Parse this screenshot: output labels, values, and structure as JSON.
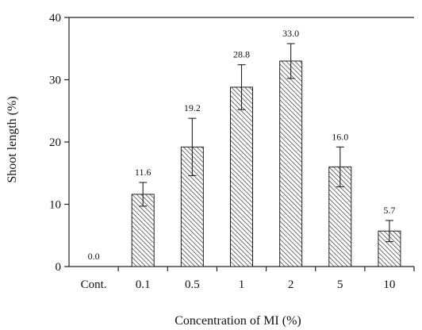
{
  "chart_data": {
    "type": "bar",
    "title": "",
    "xlabel": "Concentration of MI (%)",
    "ylabel": "Shoot length (%)",
    "ylim": [
      0,
      40
    ],
    "yticks": [
      0,
      10,
      20,
      30,
      40
    ],
    "categories": [
      "Cont.",
      "0.1",
      "0.5",
      "1",
      "2",
      "5",
      "10"
    ],
    "values": [
      0.0,
      11.6,
      19.2,
      28.8,
      33.0,
      16.0,
      5.7
    ],
    "value_labels": [
      "0.0",
      "11.6",
      "19.2",
      "28.8",
      "33.0",
      "16.0",
      "5.7"
    ],
    "errors": [
      0,
      1.9,
      4.6,
      3.6,
      2.8,
      3.2,
      1.7
    ],
    "grid": false,
    "legend": "none",
    "bar_fill": "hatched",
    "colors": {
      "axis": "#222222",
      "bar_fill": "#ffffff",
      "hatch": "#333333",
      "text": "#111111"
    }
  }
}
